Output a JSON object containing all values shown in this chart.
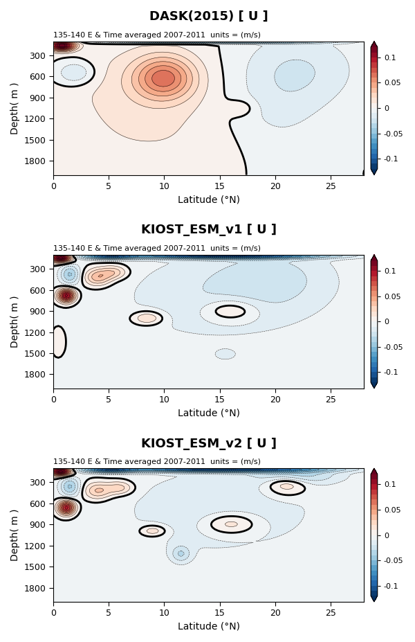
{
  "panels": [
    {
      "title": "DASK(2015) [ U ]",
      "subtitle": "135-140 E & Time averaged 2007-2011  units = (m/s)"
    },
    {
      "title": "KIOST_ESM_v1 [ U ]",
      "subtitle": "135-140 E & Time averaged 2007-2011  units = (m/s)"
    },
    {
      "title": "KIOST_ESM_v2 [ U ]",
      "subtitle": "135-140 E & Time averaged 2007-2011  units = (m/s)"
    }
  ],
  "xlabel": "Latitude (°N)",
  "ylabel": "Depth( m )",
  "xlim": [
    0,
    28
  ],
  "ylim": [
    2000,
    100
  ],
  "xticks": [
    0,
    5,
    10,
    15,
    20,
    25
  ],
  "yticks": [
    300,
    600,
    900,
    1200,
    1500,
    1800
  ],
  "clim": [
    -0.12,
    0.12
  ],
  "cbar_ticks": [
    -0.1,
    -0.05,
    0,
    0.05,
    0.1
  ],
  "n_fill_levels": 25,
  "n_line_levels": 25,
  "figsize": [
    6.0,
    9.27
  ],
  "dpi": 100
}
